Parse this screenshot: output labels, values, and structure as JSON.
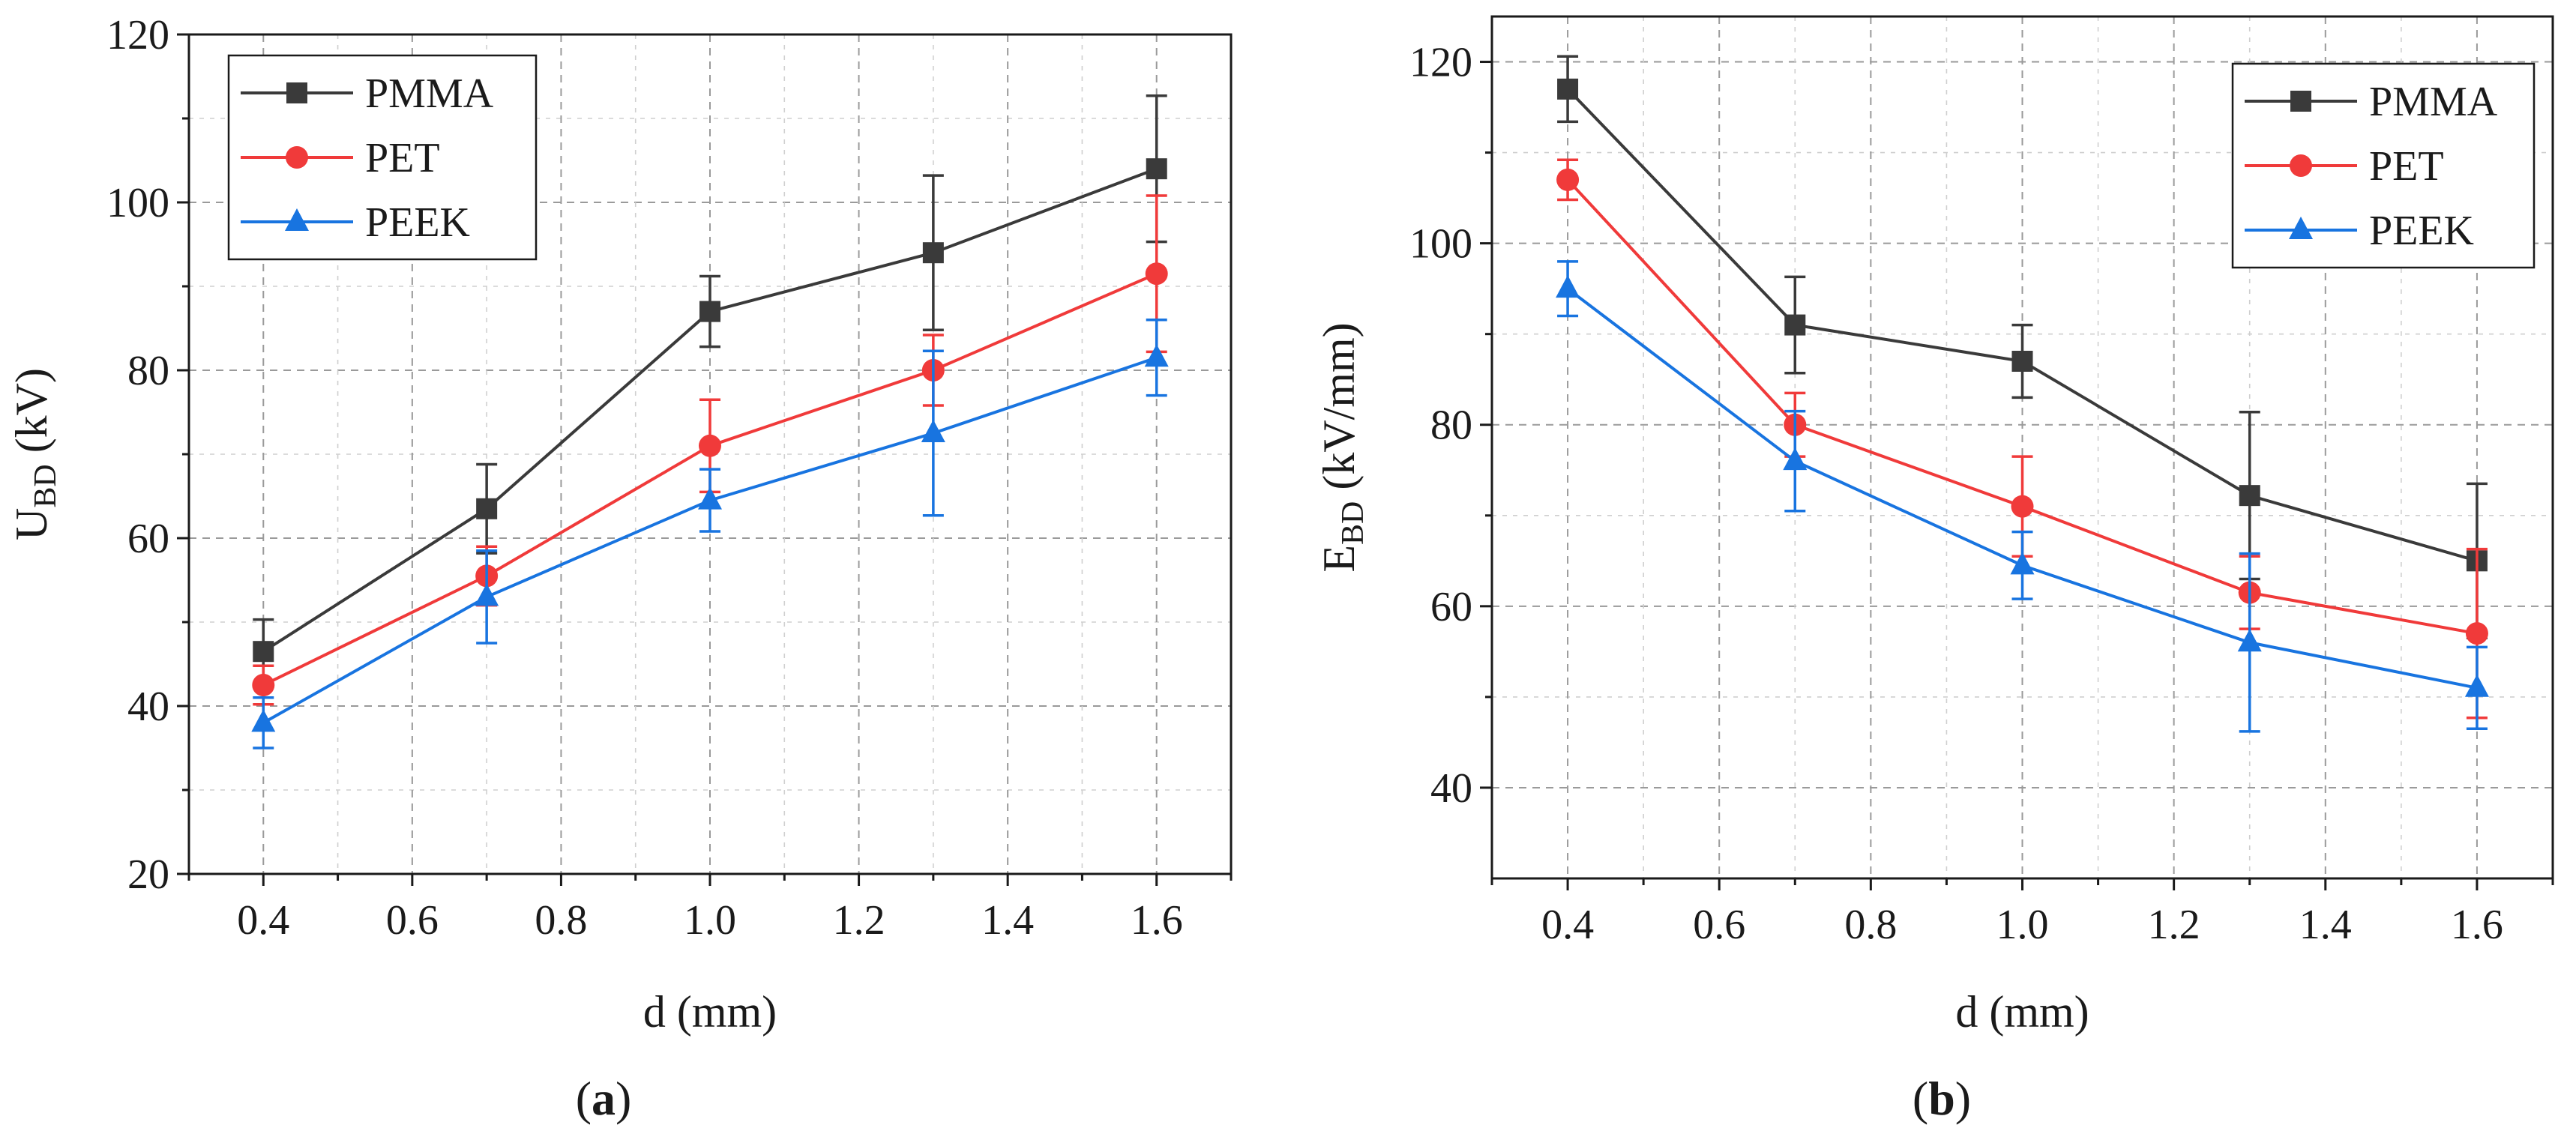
{
  "chart_data": [
    {
      "id": "a",
      "type": "line",
      "panel_label": "a",
      "xlabel": "d (mm)",
      "ylabel": {
        "main": "U",
        "sub": "BD",
        "rest": " (kV)"
      },
      "x": [
        0.4,
        0.7,
        1.0,
        1.3,
        1.6
      ],
      "xlim": [
        0.3,
        1.7
      ],
      "ylim": [
        20,
        120
      ],
      "xticks": [
        0.4,
        0.6,
        0.8,
        1.0,
        1.2,
        1.4,
        1.6
      ],
      "xtick_labels": [
        "0.4",
        "0.6",
        "0.8",
        "1.0",
        "1.2",
        "1.4",
        "1.6"
      ],
      "yticks": [
        20,
        40,
        60,
        80,
        100,
        120
      ],
      "ytick_labels": [
        "20",
        "40",
        "60",
        "80",
        "100",
        "120"
      ],
      "grid": true,
      "legend_position": "top-left",
      "series": [
        {
          "name": "PMMA",
          "marker": "square",
          "color": "#3a3a3a",
          "values": [
            46.5,
            63.5,
            87,
            94,
            104
          ],
          "errors": [
            3.8,
            5.3,
            4.2,
            9.2,
            8.7
          ]
        },
        {
          "name": "PET",
          "marker": "circle",
          "color": "#f03a3a",
          "values": [
            42.5,
            55.5,
            71,
            80,
            91.5
          ],
          "errors": [
            2.3,
            3.5,
            5.5,
            4.2,
            9.3
          ]
        },
        {
          "name": "PEEK",
          "marker": "triangle",
          "color": "#1874e0",
          "values": [
            38,
            53,
            64.5,
            72.5,
            81.5
          ],
          "errors": [
            3.0,
            5.5,
            3.7,
            9.8,
            4.5
          ]
        }
      ]
    },
    {
      "id": "b",
      "type": "line",
      "panel_label": "b",
      "xlabel": "d (mm)",
      "ylabel": {
        "main": "E",
        "sub": "BD",
        "rest": " (kV/mm)"
      },
      "x": [
        0.4,
        0.7,
        1.0,
        1.3,
        1.6
      ],
      "xlim": [
        0.3,
        1.7
      ],
      "ylim": [
        30,
        125
      ],
      "xticks": [
        0.4,
        0.6,
        0.8,
        1.0,
        1.2,
        1.4,
        1.6
      ],
      "xtick_labels": [
        "0.4",
        "0.6",
        "0.8",
        "1.0",
        "1.2",
        "1.4",
        "1.6"
      ],
      "yticks": [
        40,
        60,
        80,
        100,
        120
      ],
      "ytick_labels": [
        "40",
        "60",
        "80",
        "100",
        "120"
      ],
      "grid": true,
      "legend_position": "top-right",
      "series": [
        {
          "name": "PMMA",
          "marker": "square",
          "color": "#3a3a3a",
          "values": [
            117,
            91,
            87,
            72.2,
            65
          ],
          "errors": [
            3.6,
            5.3,
            4.0,
            9.2,
            8.5
          ]
        },
        {
          "name": "PET",
          "marker": "circle",
          "color": "#f03a3a",
          "values": [
            107,
            80,
            71,
            61.5,
            57
          ],
          "errors": [
            2.2,
            3.5,
            5.5,
            4.0,
            9.3
          ]
        },
        {
          "name": "PEEK",
          "marker": "triangle",
          "color": "#1874e0",
          "values": [
            95,
            76,
            64.5,
            56,
            51
          ],
          "errors": [
            3.0,
            5.5,
            3.7,
            9.8,
            4.5
          ]
        }
      ]
    }
  ]
}
